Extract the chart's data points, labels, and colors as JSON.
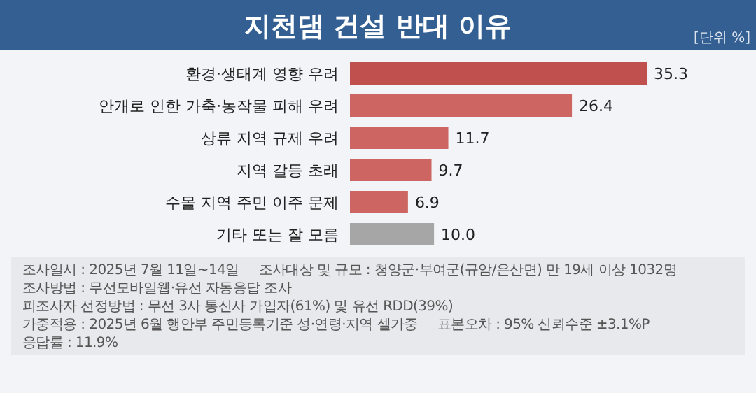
{
  "chart_data": {
    "type": "bar",
    "orientation": "horizontal",
    "title": "지천댐 건설 반대 이유",
    "categories": [
      "환경·생태계 영향 우려",
      "안개로 인한 가축·농작물 피해 우려",
      "상류 지역 규제 우려",
      "지역 갈등 초래",
      "수몰 지역 주민 이주 문제",
      "기타 또는 잘 모름"
    ],
    "values": [
      35.3,
      26.4,
      11.7,
      9.7,
      6.9,
      10.0
    ],
    "value_labels": [
      "35.3",
      "26.4",
      "11.7",
      "9.7",
      "6.9",
      "10.0"
    ],
    "colors": [
      "#c0504d",
      "#cd6662",
      "#cd6662",
      "#cd6662",
      "#cd6662",
      "#a6a6a6"
    ],
    "annotations": [
      "[단위 %]",
      "조사일시 : 2025년 7월 11일~14일",
      "조사대상 및 규모 : 청양군·부여군(규암/은산면) 만 19세 이상 1032명",
      "조사방법 : 무선모바일웹·유선 자동응답 조사",
      "피조사자 선정방법 : 무선 3사 통신사 가입자(61%) 및 유선 RDD(39%)",
      "가중적용 : 2025년 6월 행안부 주민등록기준 성·연령·지역 셀가중",
      "표본오차 : 95% 신뢰수준 ±3.1%P",
      "응답률 : 11.9%"
    ]
  }
}
